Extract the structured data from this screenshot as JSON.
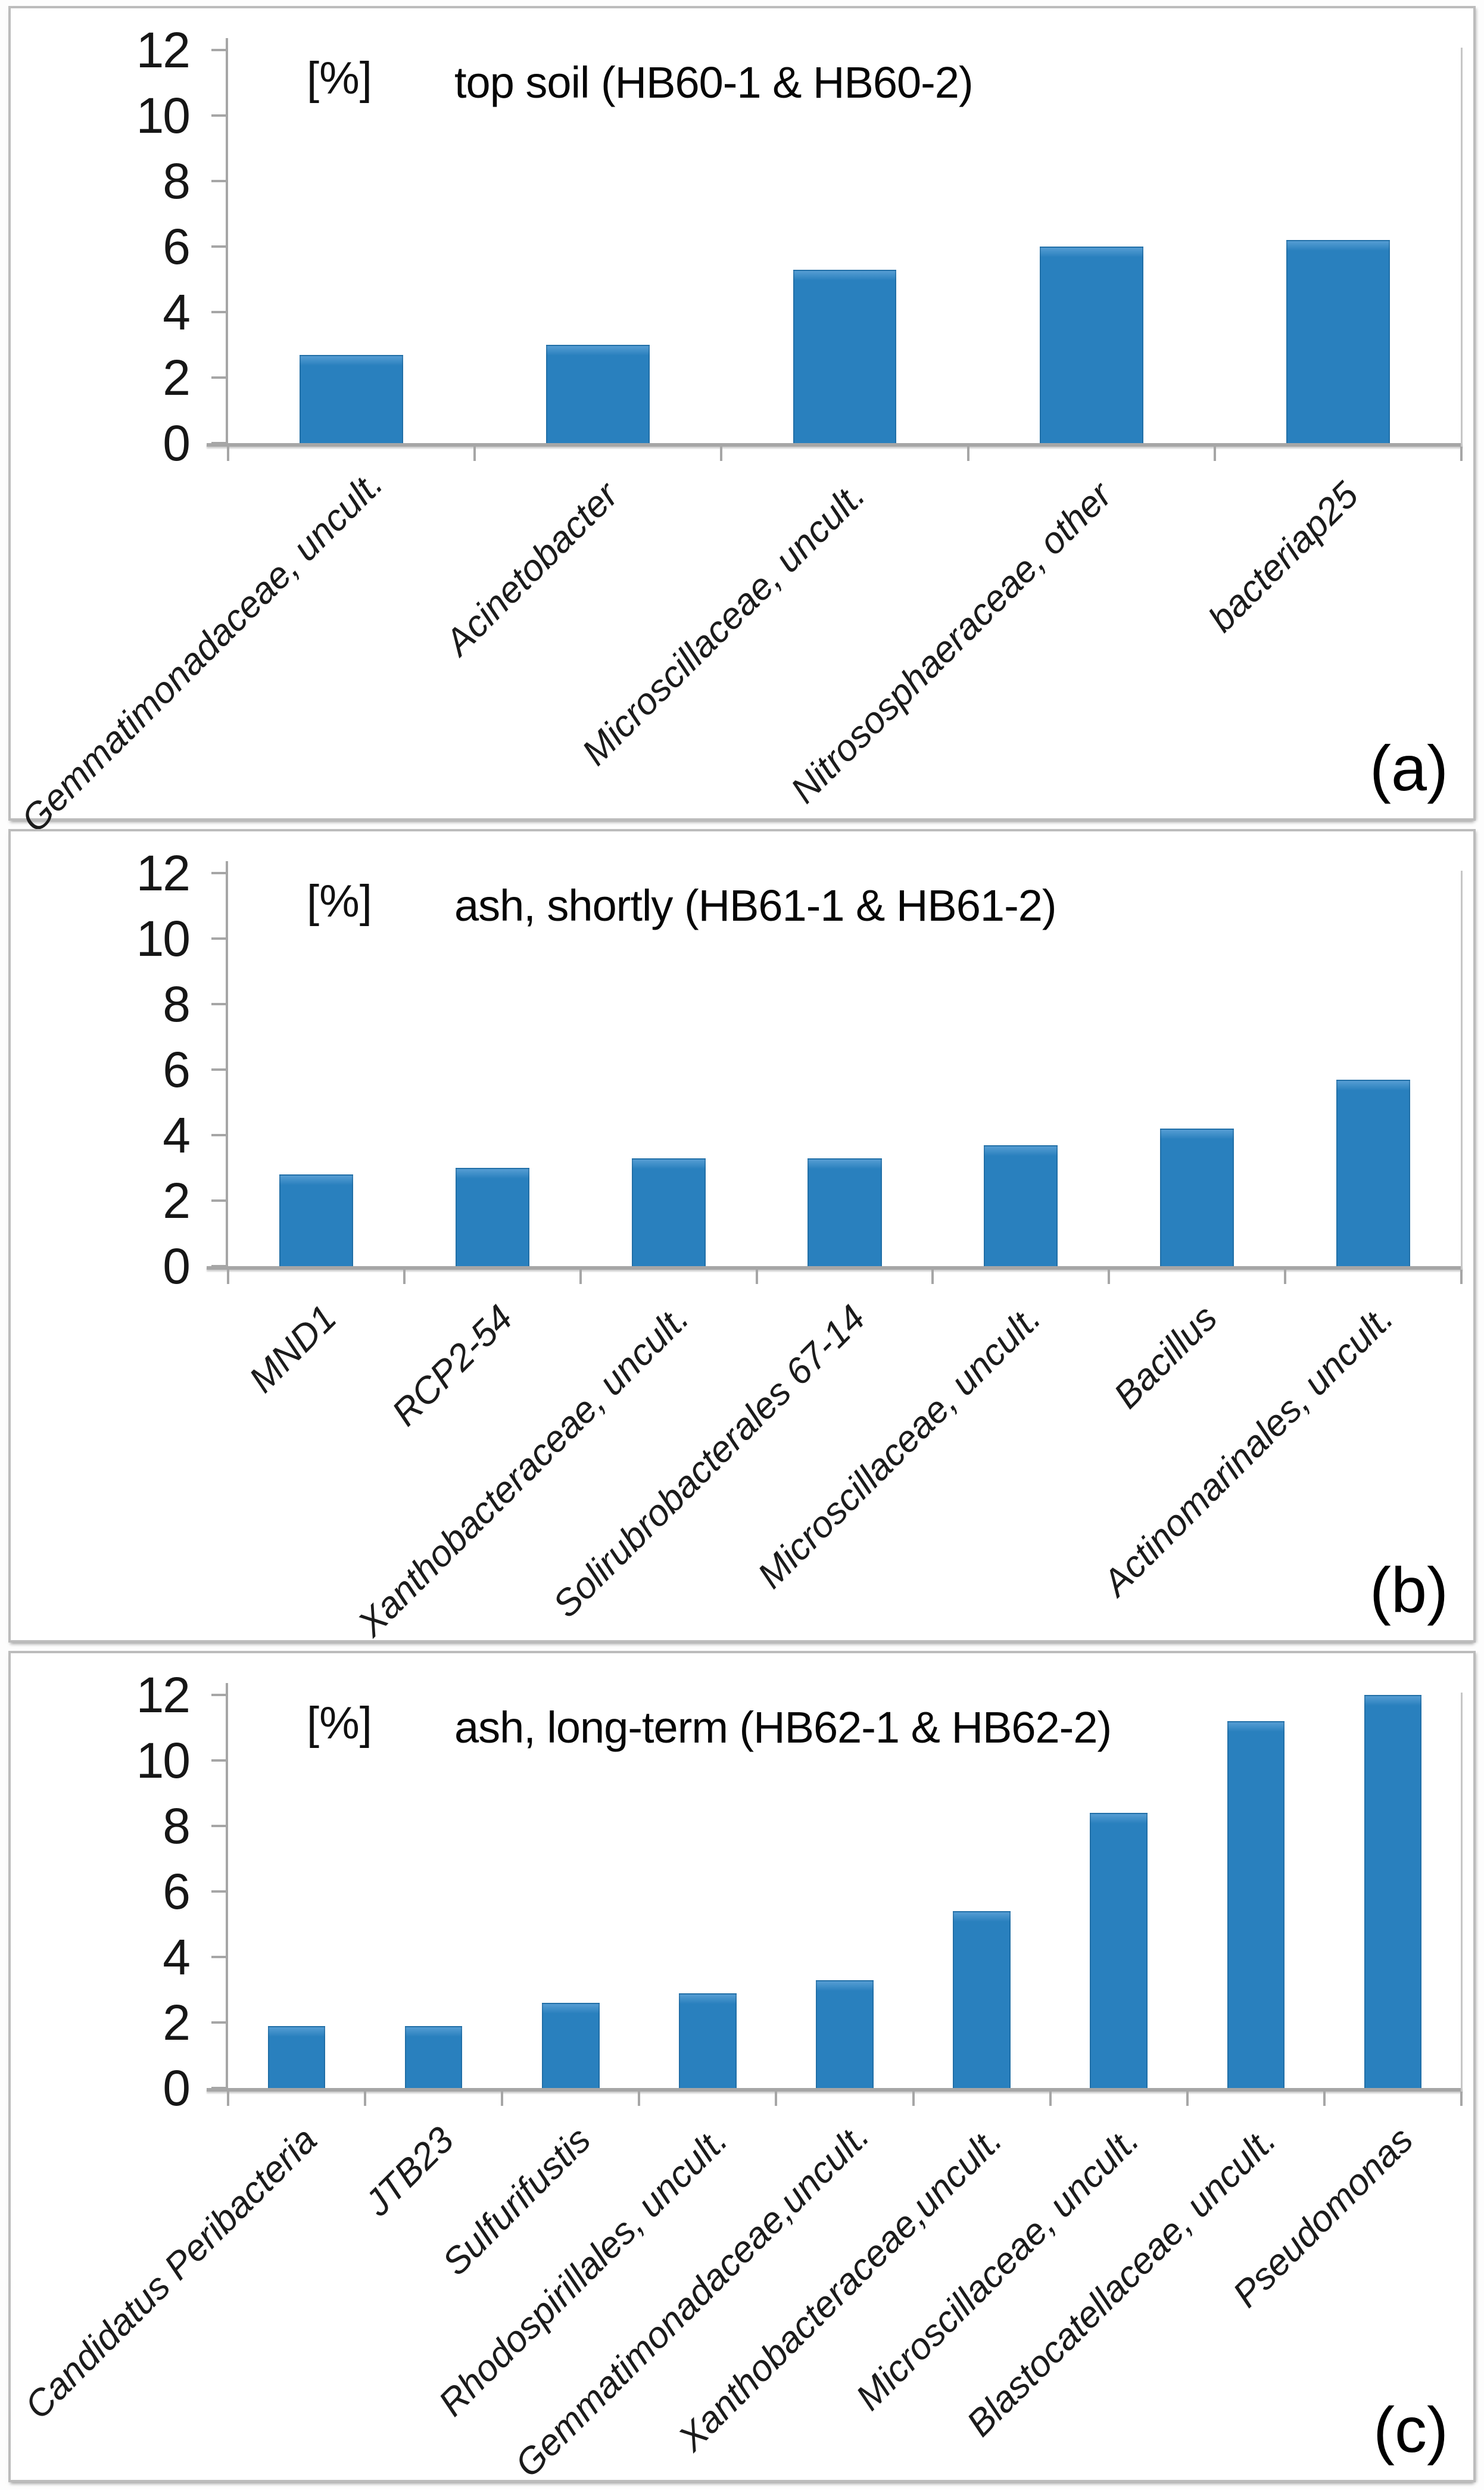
{
  "colors": {
    "bar_fill": "#2980be",
    "bar_edge": "#195a8c",
    "axis": "#a6a6a6",
    "text": "#161616",
    "panel_border": "#bcbcbc"
  },
  "chart_data": [
    {
      "type": "bar",
      "panel_label": "(a)",
      "title": "top soil (HB60-1 & HB60-2)",
      "unit_label": "[%]",
      "xlabel": "",
      "ylabel": "[%]",
      "ylim": [
        0,
        12
      ],
      "yticks": [
        0,
        2,
        4,
        6,
        8,
        10,
        12
      ],
      "grid": false,
      "legend": "none",
      "categories": [
        "Gemmatimonadaceae, uncult.",
        "Acinetobacter",
        "Microscillaceae, uncult.",
        "Nitrososphaeraceae, other",
        "bacteriap25"
      ],
      "values": [
        2.7,
        3.0,
        5.3,
        6.0,
        6.2
      ]
    },
    {
      "type": "bar",
      "panel_label": "(b)",
      "title": "ash, shortly (HB61-1 & HB61-2)",
      "unit_label": "[%]",
      "xlabel": "",
      "ylabel": "[%]",
      "ylim": [
        0,
        12
      ],
      "yticks": [
        0,
        2,
        4,
        6,
        8,
        10,
        12
      ],
      "grid": false,
      "legend": "none",
      "categories": [
        "MND1",
        "RCP2-54",
        "Xanthobacteraceae, uncult.",
        "Solirubrobacterales 67-14",
        "Microscillaceae, uncult.",
        "Bacillus",
        "Actinomarinales, uncult."
      ],
      "values": [
        2.8,
        3.0,
        3.3,
        3.3,
        3.7,
        4.2,
        5.7
      ]
    },
    {
      "type": "bar",
      "panel_label": "(c)",
      "title": "ash, long-term (HB62-1 & HB62-2)",
      "unit_label": "[%]",
      "xlabel": "",
      "ylabel": "[%]",
      "ylim": [
        0,
        12
      ],
      "yticks": [
        0,
        2,
        4,
        6,
        8,
        10,
        12
      ],
      "grid": false,
      "legend": "none",
      "categories": [
        "Candidatus Peribacteria",
        "JTB23",
        "Sulfurifustis",
        "Rhodospirillales, uncult.",
        "Gemmatimonadaceae,uncult.",
        "Xanthobacteraceae,uncult.",
        "Microscillaceae, uncult.",
        "Blastocatellaceae, uncult.",
        "Pseudomonas"
      ],
      "values": [
        1.9,
        1.9,
        2.6,
        2.9,
        3.3,
        5.4,
        8.4,
        11.2,
        12.0
      ]
    }
  ]
}
